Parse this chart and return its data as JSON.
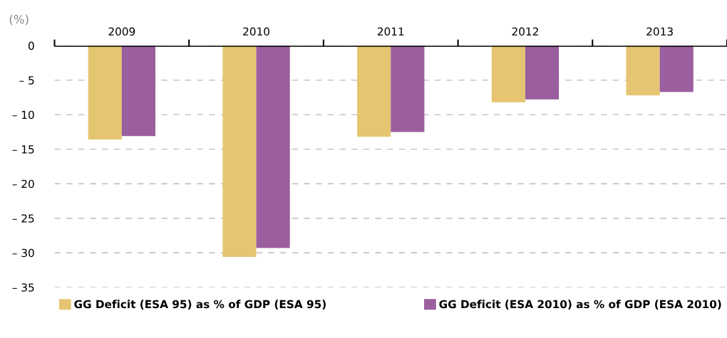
{
  "chart_data": {
    "type": "bar",
    "ylabel": "(%)",
    "categories": [
      "2009",
      "2010",
      "2011",
      "2012",
      "2013"
    ],
    "series": [
      {
        "name": "GG Deficit (ESA 95) as % of GDP (ESA 95)",
        "color": "#e5c571",
        "values": [
          -13.6,
          -30.6,
          -13.2,
          -8.2,
          -7.2
        ]
      },
      {
        "name": "GG Deficit (ESA 2010) as % of GDP (ESA 2010)",
        "color": "#9b5e9f",
        "values": [
          -13.1,
          -29.3,
          -12.5,
          -7.8,
          -6.7
        ]
      }
    ],
    "ylim": [
      -35,
      0
    ],
    "yticks": [
      0,
      {
        "value": -5,
        "label": "– 5"
      },
      {
        "value": -10,
        "label": "– 10"
      },
      {
        "value": -15,
        "label": "– 15"
      },
      {
        "value": -20,
        "label": "– 20"
      },
      {
        "value": -25,
        "label": "– 25"
      },
      {
        "value": -30,
        "label": "– 30"
      },
      {
        "value": -35,
        "label": "– 35"
      }
    ],
    "grid": "y",
    "legend": "bottom"
  }
}
